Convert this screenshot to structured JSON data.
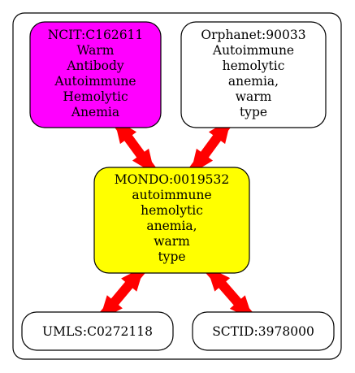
{
  "diagram": {
    "nodes": [
      {
        "id": "ncit",
        "lines": [
          "NCIT:C162611",
          "Warm",
          "Antibody",
          "Autoimmune",
          "Hemolytic",
          "Anemia"
        ],
        "fill": "#ff00ff"
      },
      {
        "id": "orphanet",
        "lines": [
          "Orphanet:90033",
          "Autoimmune",
          "hemolytic",
          "anemia,",
          "warm",
          "type"
        ],
        "fill": "#ffffff"
      },
      {
        "id": "mondo",
        "lines": [
          "MONDO:0019532",
          "autoimmune",
          "hemolytic",
          "anemia,",
          "warm",
          "type"
        ],
        "fill": "#ffff00"
      },
      {
        "id": "umls",
        "lines": [
          "UMLS:C0272118"
        ],
        "fill": "#ffffff"
      },
      {
        "id": "sctid",
        "lines": [
          "SCTID:3978000"
        ],
        "fill": "#ffffff"
      }
    ],
    "edges": [
      {
        "from": "ncit",
        "to": "mondo",
        "direction": "both"
      },
      {
        "from": "orphanet",
        "to": "mondo",
        "direction": "both"
      },
      {
        "from": "mondo",
        "to": "umls",
        "direction": "both"
      },
      {
        "from": "mondo",
        "to": "sctid",
        "direction": "both"
      }
    ],
    "colors": {
      "edge": "#ff0000",
      "stroke": "#000000",
      "background": "#ffffff"
    }
  }
}
